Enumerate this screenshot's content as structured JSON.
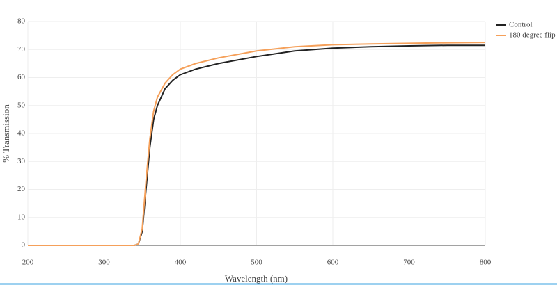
{
  "chart_data": {
    "type": "line",
    "x_label": "Wavelength (nm)",
    "y_label": "% Transmission",
    "x": [
      200,
      250,
      300,
      340,
      345,
      350,
      355,
      360,
      365,
      370,
      380,
      390,
      400,
      420,
      450,
      500,
      550,
      600,
      650,
      700,
      750,
      800
    ],
    "series": [
      {
        "name": "Control",
        "color": "#222222",
        "values": [
          0,
          0,
          0,
          0,
          0.5,
          5,
          20,
          35,
          45,
          50,
          56,
          59,
          61,
          63,
          65,
          67.5,
          69.5,
          70.5,
          71,
          71.3,
          71.5,
          71.5
        ]
      },
      {
        "name": "180 degree flip",
        "color": "#f5a05a",
        "values": [
          0,
          0,
          0,
          0,
          0.5,
          6,
          23,
          38,
          48,
          53,
          58,
          61,
          63,
          65,
          67,
          69.5,
          71,
          71.7,
          72,
          72.2,
          72.4,
          72.5
        ]
      }
    ],
    "xlim": [
      200,
      800
    ],
    "ylim": [
      0,
      80
    ],
    "xticks": [
      200,
      300,
      400,
      500,
      600,
      700,
      800
    ],
    "yticks": [
      0,
      10,
      20,
      30,
      40,
      50,
      60,
      70,
      80
    ],
    "grid": true,
    "legend": "top-right"
  }
}
